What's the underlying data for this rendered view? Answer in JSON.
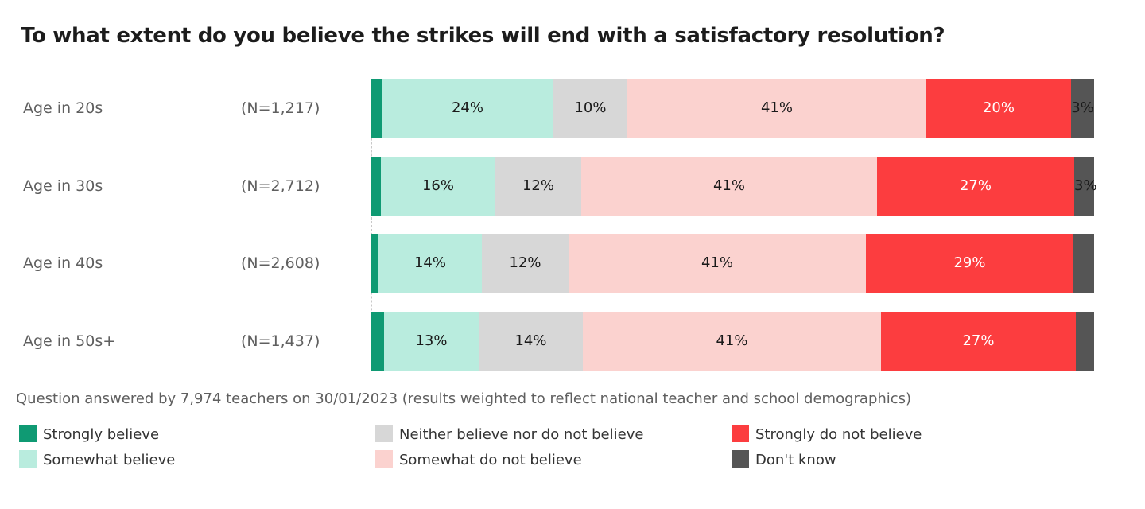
{
  "chart_data": {
    "type": "bar",
    "orientation": "horizontal",
    "stacked": true,
    "title": "To what extent do you believe the strikes will end with a satisfactory resolution?",
    "categories": [
      "Age in 20s",
      "Age in 30s",
      "Age in 40s",
      "Age in 50s+"
    ],
    "sample_sizes": [
      "(N=1,217)",
      "(N=2,712)",
      "(N=2,608)",
      "(N=1,437)"
    ],
    "xlim": [
      0,
      100
    ],
    "series": [
      {
        "name": "Strongly believe",
        "color": "#0f9a73",
        "values": [
          1.4,
          1.3,
          1.0,
          1.8
        ],
        "labels": [
          "",
          "",
          "",
          ""
        ],
        "label_color": "#1a1a1a"
      },
      {
        "name": "Somewhat believe",
        "color": "#b9ecde",
        "values": [
          23.8,
          15.9,
          14.3,
          13.0
        ],
        "labels": [
          "24%",
          "16%",
          "14%",
          "13%"
        ],
        "label_color": "#1a1a1a"
      },
      {
        "name": "Neither believe nor do not believe",
        "color": "#d7d7d7",
        "values": [
          10.2,
          11.8,
          12.0,
          14.5
        ],
        "labels": [
          "10%",
          "12%",
          "12%",
          "14%"
        ],
        "label_color": "#1a1a1a"
      },
      {
        "name": "Somewhat do not believe",
        "color": "#fbd2cf",
        "values": [
          41.4,
          41.0,
          41.1,
          41.2
        ],
        "labels": [
          "41%",
          "41%",
          "41%",
          "41%"
        ],
        "label_color": "#1a1a1a"
      },
      {
        "name": "Strongly do not believe",
        "color": "#fc3d3f",
        "values": [
          20.0,
          27.3,
          28.7,
          27.0
        ],
        "labels": [
          "20%",
          "27%",
          "29%",
          "27%"
        ],
        "label_color": "#ffffff"
      },
      {
        "name": "Don't know",
        "color": "#555555",
        "values": [
          3.2,
          2.7,
          2.9,
          2.5
        ],
        "labels": [
          "3%",
          "3%",
          "",
          ""
        ],
        "label_color": "#1a1a1a"
      }
    ]
  },
  "footnote": "Question answered by 7,974 teachers on 30/01/2023 (results weighted to reflect national teacher and school demographics)",
  "legend": [
    {
      "label": "Strongly believe",
      "color": "#0f9a73"
    },
    {
      "label": "Somewhat believe",
      "color": "#b9ecde"
    },
    {
      "label": "Neither believe nor do not believe",
      "color": "#d7d7d7"
    },
    {
      "label": "Somewhat do not believe",
      "color": "#fbd2cf"
    },
    {
      "label": "Strongly do not believe",
      "color": "#fc3d3f"
    },
    {
      "label": "Don't know",
      "color": "#555555"
    }
  ]
}
